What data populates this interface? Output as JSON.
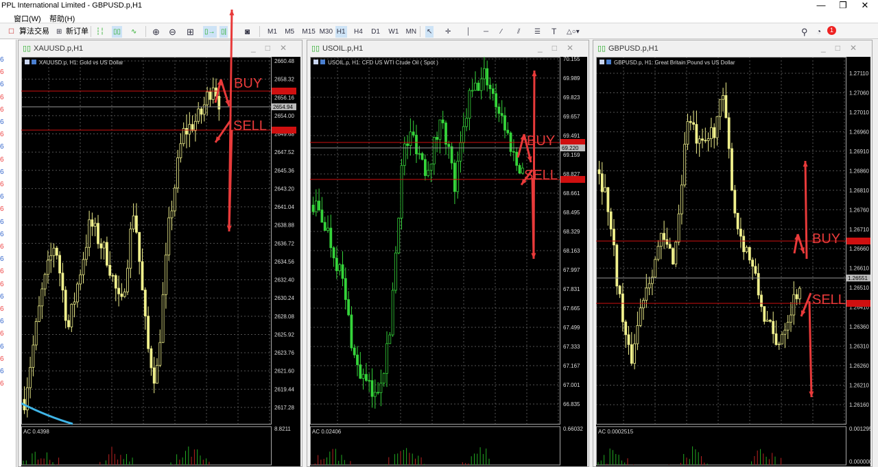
{
  "window": {
    "title": "PPL International Limited - GBPUSD.p,H1",
    "controls": [
      "—",
      "❐",
      "✕"
    ]
  },
  "menu": [
    "窗口(W)",
    "帮助(H)"
  ],
  "toolbar": {
    "algo_trading": "算法交易",
    "new_order": "新订单",
    "timeframes": [
      "M1",
      "M5",
      "M15",
      "M30",
      "H1",
      "H4",
      "D1",
      "W1",
      "MN"
    ],
    "active_timeframe": "H1",
    "notification_count": "1",
    "icons": [
      "bar-chart-icon",
      "candlestick-icon",
      "line-chart-icon",
      "zoom-in-icon",
      "zoom-out-icon",
      "grid-icon",
      "auto-scroll-icon",
      "chart-shift-icon",
      "screenshot-icon",
      "cursor-icon",
      "crosshair-icon",
      "vertical-line-icon",
      "horizontal-line-icon",
      "trendline-icon",
      "channel-icon",
      "fibonacci-icon",
      "text-icon",
      "shapes-icon",
      "search-icon",
      "notification-icon"
    ]
  },
  "left_panel": {
    "digit": "6"
  },
  "colors": {
    "bull_xau": "#f0f08c",
    "green_oil": "#2ecc40",
    "red_level": "#d01010",
    "annotation": "#e83a3a",
    "indicator_blue": "#3fb4e6"
  },
  "charts": [
    {
      "tab": "XAUUSD.p,H1",
      "info": "XAUUSD.p, H1:  Gold vs US Dollar",
      "axis": [
        "2660.48",
        "2658.32",
        "2656.16",
        "2654.00",
        "2649.68",
        "2647.52",
        "2645.36",
        "2643.20",
        "2641.04",
        "2638.88",
        "2636.72",
        "2634.56",
        "2632.40",
        "2630.24",
        "2628.08",
        "2625.92",
        "2623.76",
        "2621.60",
        "2619.44",
        "2617.28"
      ],
      "current_price": "2654.94",
      "indicator": "AC 0.4398",
      "indicator_axis": "8.8211",
      "buy": "BUY",
      "sell": "SELL"
    },
    {
      "tab": "USOIL.p,H1",
      "info": "USOIL.p, H1:  CFD US WTI Crude Oil ( Spot )",
      "axis": [
        "70.155",
        "69.989",
        "69.823",
        "69.657",
        "69.491",
        "69.159",
        "68.827",
        "68.661",
        "68.495",
        "68.329",
        "68.163",
        "67.997",
        "67.831",
        "67.665",
        "67.499",
        "67.333",
        "67.167",
        "67.001",
        "66.835"
      ],
      "current_price": "69.220",
      "indicator": "AC 0.02406",
      "indicator_axis": "0.66032",
      "buy": "BUY",
      "sell": "SELL"
    },
    {
      "tab": "GBPUSD.p,H1",
      "info": "GBPUSD.p, H1:  Great Britain Pound vs US Dollar",
      "axis": [
        "1.27110",
        "1.27060",
        "1.27010",
        "1.26960",
        "1.26910",
        "1.26860",
        "1.26810",
        "1.26760",
        "1.26710",
        "1.26660",
        "1.26610",
        "1.26510",
        "1.26410",
        "1.26360",
        "1.26310",
        "1.26260",
        "1.26210",
        "1.26160"
      ],
      "current_price": "1.26551",
      "indicator": "AC 0.0002515",
      "indicator_axis": "0.0012952",
      "indicator_axis_min": "0.0000000",
      "buy": "BUY",
      "sell": "SELL"
    }
  ]
}
